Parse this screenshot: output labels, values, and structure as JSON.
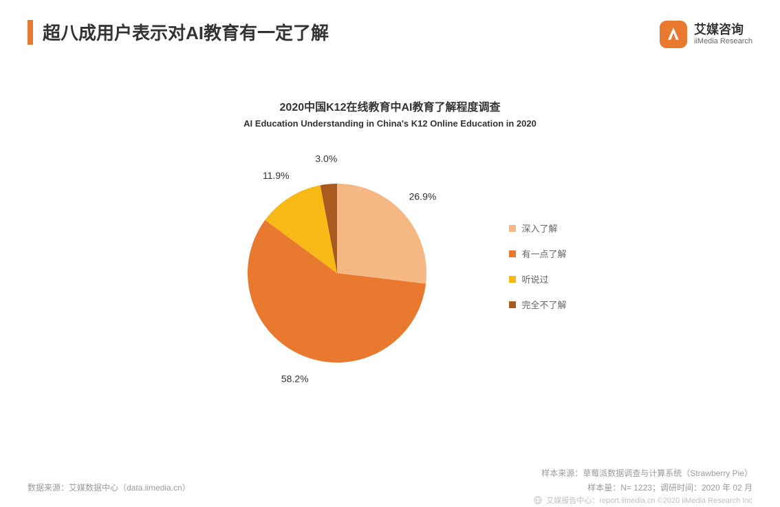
{
  "page": {
    "title": "超八成用户表示对AI教育有一定了解",
    "accent_bar_color": "#e8792f",
    "background_color": "#ffffff"
  },
  "logo": {
    "cn": "艾媒咨询",
    "en": "iiMedia Research",
    "icon_color": "#e8792f",
    "icon_stroke": "#ffffff"
  },
  "chart": {
    "type": "pie",
    "title_cn": "2020中国K12在线教育中AI教育了解程度调查",
    "title_en": "AI Education Understanding in China's K12 Online Education in 2020",
    "title_fontsize": 16,
    "subtitle_fontsize": 13,
    "radius": 130,
    "start_angle_deg": 0,
    "label_fontsize": 14,
    "label_color": "#333333",
    "label_offset": 1.28,
    "slices": [
      {
        "label": "深入了解",
        "value": 26.9,
        "pct_text": "26.9%",
        "color": "#f5b784"
      },
      {
        "label": "有一点了解",
        "value": 58.2,
        "pct_text": "58.2%",
        "color": "#e8792f"
      },
      {
        "label": "听说过",
        "value": 11.9,
        "pct_text": "11.9%",
        "color": "#f7b916"
      },
      {
        "label": "完全不了解",
        "value": 3.0,
        "pct_text": "3.0%",
        "color": "#a85a1f"
      }
    ],
    "legend": {
      "swatch_size": 10,
      "fontsize": 13,
      "text_color": "#666666"
    }
  },
  "footer": {
    "left": "数据来源：艾媒数据中心（data.iimedia.cn）",
    "right_line1": "样本来源：草莓派数据调查与计算系统（Strawberry  Pie）",
    "right_line2": "样本量：N= 1223；调研时间：2020 年 02 月",
    "text_color": "#9a9a9a",
    "fontsize": 12
  },
  "copyright": {
    "text": "艾媒报告中心：report.iimedia.cn  ©2020  iiMedia Research Inc",
    "text_color": "#c0c0c0",
    "fontsize": 11,
    "globe_color": "#c0c0c0"
  }
}
